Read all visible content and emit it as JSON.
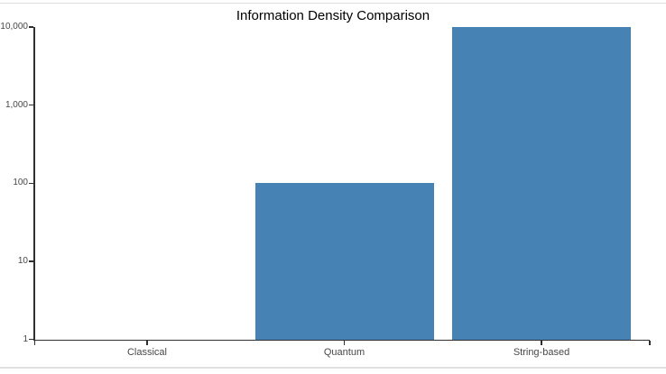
{
  "page": {
    "divider_color": "#dddddd",
    "background": "#ffffff"
  },
  "chart_data": {
    "type": "bar",
    "title": "Information Density Comparison",
    "categories": [
      "Classical",
      "Quantum",
      "String-based"
    ],
    "values": [
      1,
      100,
      10000
    ],
    "xlabel": "",
    "ylabel": "",
    "y_scale": "log",
    "ylim": [
      1,
      10000
    ],
    "y_ticks": [
      {
        "value": 1,
        "label": "1"
      },
      {
        "value": 10,
        "label": "10"
      },
      {
        "value": 100,
        "label": "100"
      },
      {
        "value": 1000,
        "label": "1,000"
      },
      {
        "value": 10000,
        "label": "10,000"
      }
    ],
    "grid": false,
    "legend": "none",
    "bar_color": "#4682b4",
    "axis_color": "#2f2f2f",
    "tick_label_color": "#474747",
    "title_color": "#000000"
  }
}
